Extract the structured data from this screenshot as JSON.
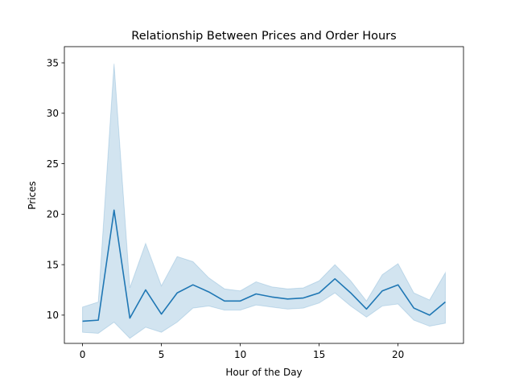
{
  "chart_data": {
    "type": "line",
    "title": "Relationship Between Prices and Order Hours",
    "xlabel": "Hour of the Day",
    "ylabel": "Prices",
    "xlim": [
      -1.15,
      24.15
    ],
    "ylim": [
      7.2,
      36.6
    ],
    "xticks": [
      0,
      5,
      10,
      15,
      20
    ],
    "yticks": [
      10,
      15,
      20,
      25,
      30,
      35
    ],
    "grid": false,
    "series": [
      {
        "color": "#1f77b4",
        "band_color": "#1f77b4",
        "x": [
          0,
          1,
          2,
          3,
          4,
          5,
          6,
          7,
          8,
          9,
          10,
          11,
          12,
          13,
          14,
          15,
          16,
          17,
          18,
          19,
          20,
          21,
          22,
          23
        ],
        "y": [
          9.4,
          9.5,
          20.4,
          9.7,
          12.5,
          10.1,
          12.2,
          13.0,
          12.3,
          11.4,
          11.4,
          12.1,
          11.8,
          11.6,
          11.7,
          12.2,
          13.6,
          12.2,
          10.6,
          12.4,
          13.0,
          10.7,
          10.0,
          11.3
        ],
        "lower": [
          8.3,
          8.2,
          9.3,
          7.7,
          8.8,
          8.3,
          9.3,
          10.7,
          10.9,
          10.5,
          10.5,
          11.0,
          10.8,
          10.6,
          10.7,
          11.2,
          12.2,
          10.9,
          9.8,
          10.9,
          11.1,
          9.5,
          8.9,
          9.2
        ],
        "upper": [
          10.8,
          11.3,
          34.9,
          12.7,
          17.1,
          12.9,
          15.8,
          15.3,
          13.7,
          12.6,
          12.4,
          13.3,
          12.8,
          12.6,
          12.7,
          13.4,
          15.0,
          13.4,
          11.4,
          14.0,
          15.1,
          12.2,
          11.5,
          14.2
        ]
      }
    ]
  }
}
